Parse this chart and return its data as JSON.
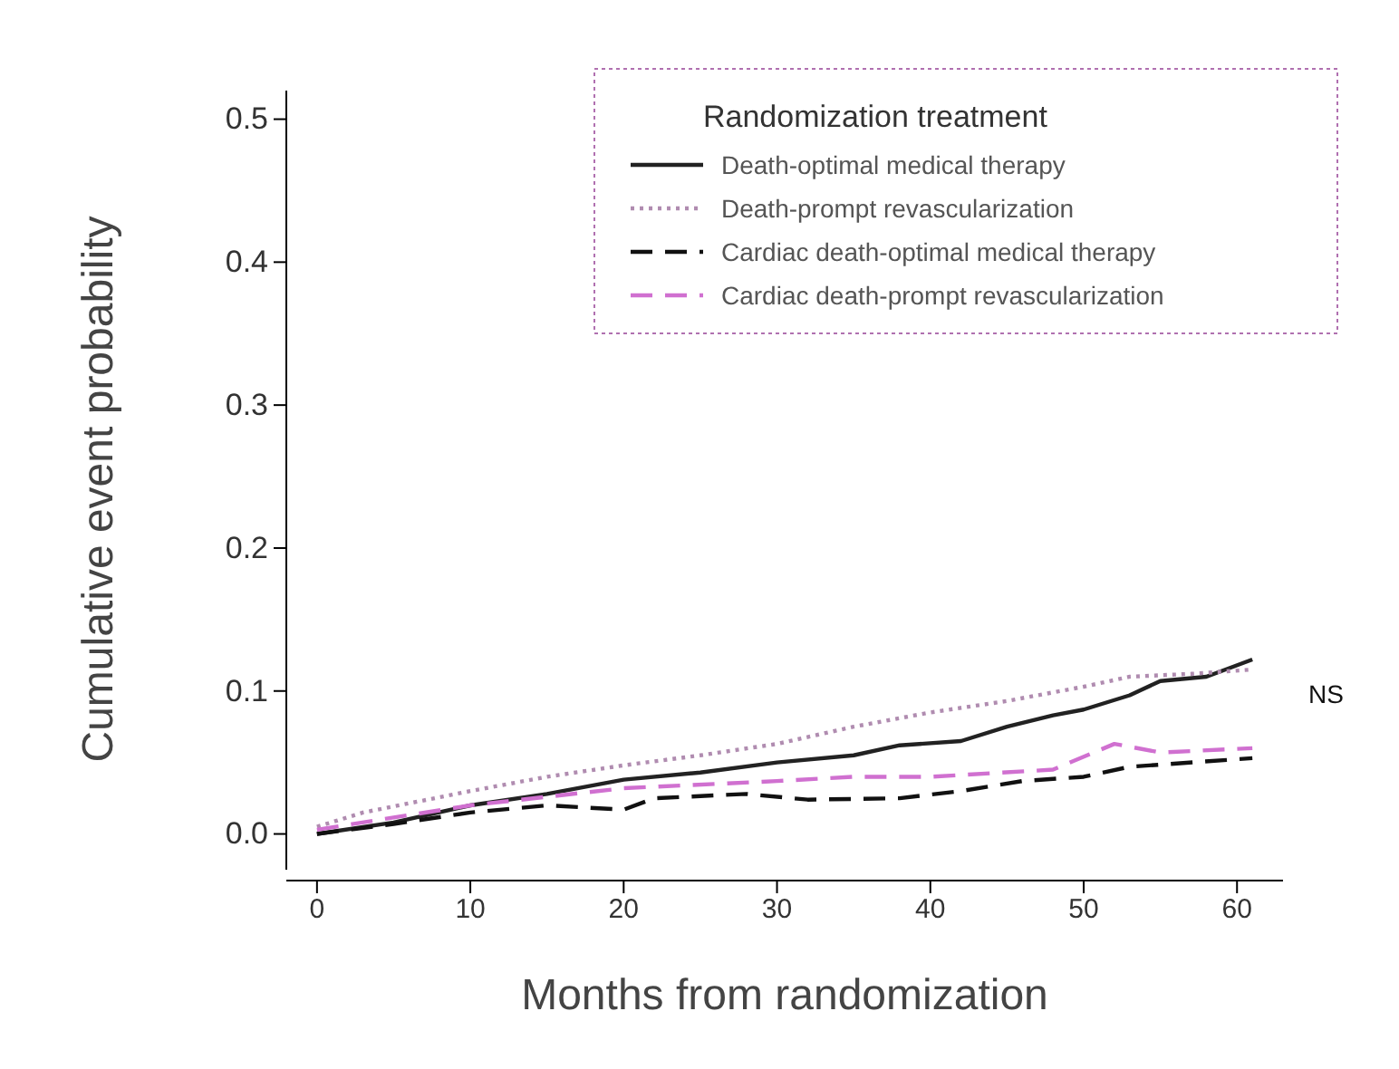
{
  "chart_data": {
    "type": "line",
    "xlabel": "Months from randomization",
    "ylabel": "Cumulative event probability",
    "legend_title": "Randomization treatment",
    "legend": "top right",
    "grid": false,
    "xlim": [
      -2,
      63
    ],
    "ylim": [
      -0.025,
      0.52
    ],
    "xticks": [
      0,
      10,
      20,
      30,
      40,
      50,
      60
    ],
    "yticks": [
      {
        "value": 0,
        "label": "0.0"
      },
      0.1,
      0.2,
      0.3,
      0.4,
      0.5
    ],
    "annotations": [
      "NS"
    ],
    "series": [
      {
        "name": "Death-optimal medical therapy",
        "color": "#222222",
        "line_style": "solid",
        "x": [
          0,
          5,
          10,
          15,
          20,
          25,
          30,
          35,
          38,
          42,
          45,
          48,
          50,
          53,
          55,
          58,
          61
        ],
        "values": [
          0,
          0.008,
          0.02,
          0.028,
          0.038,
          0.043,
          0.05,
          0.055,
          0.062,
          0.065,
          0.075,
          0.083,
          0.087,
          0.097,
          0.107,
          0.11,
          0.122
        ]
      },
      {
        "name": "Death-prompt revascularization",
        "color": "#b08cb0",
        "line_style": "dotted",
        "x": [
          0,
          3,
          10,
          15,
          20,
          25,
          30,
          35,
          40,
          45,
          50,
          53,
          57,
          61
        ],
        "values": [
          0.005,
          0.015,
          0.03,
          0.04,
          0.048,
          0.055,
          0.063,
          0.075,
          0.085,
          0.093,
          0.103,
          0.11,
          0.112,
          0.115
        ]
      },
      {
        "name": "Cardiac death-optimal medical therapy",
        "color": "#111111",
        "line_style": "dashed",
        "x": [
          0,
          5,
          10,
          15,
          20,
          22,
          28,
          32,
          38,
          42,
          46,
          50,
          53,
          61
        ],
        "values": [
          0,
          0.007,
          0.015,
          0.02,
          0.017,
          0.025,
          0.028,
          0.024,
          0.025,
          0.03,
          0.037,
          0.04,
          0.047,
          0.053
        ]
      },
      {
        "name": "Cardiac death-prompt revascularization",
        "color": "#d070d0",
        "line_style": "dashed",
        "x": [
          0,
          10,
          20,
          30,
          35,
          40,
          48,
          52,
          55,
          61
        ],
        "values": [
          0.003,
          0.02,
          0.032,
          0.037,
          0.04,
          0.04,
          0.045,
          0.063,
          0.057,
          0.06
        ]
      }
    ]
  }
}
